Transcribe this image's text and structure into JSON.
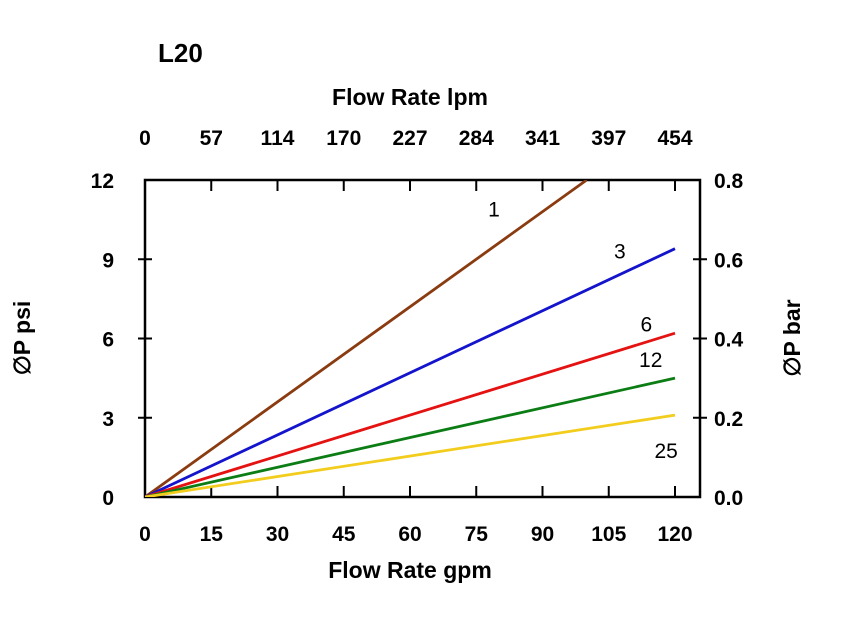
{
  "title": "L20",
  "axes": {
    "top": {
      "label": "Flow Rate lpm",
      "ticks": [
        "0",
        "57",
        "114",
        "170",
        "227",
        "284",
        "341",
        "397",
        "454"
      ]
    },
    "bottom": {
      "label": "Flow Rate gpm",
      "ticks": [
        "0",
        "15",
        "30",
        "45",
        "60",
        "75",
        "90",
        "105",
        "120"
      ]
    },
    "left": {
      "label": "∅P psi",
      "ticks": [
        "0",
        "3",
        "6",
        "9",
        "12"
      ]
    },
    "right": {
      "label": "∅P bar",
      "ticks": [
        "0.0",
        "0.2",
        "0.4",
        "0.6",
        "0.8"
      ]
    }
  },
  "chart_data": {
    "type": "line",
    "title": "L20",
    "xlabel": "Flow Rate gpm",
    "x2label": "Flow Rate lpm",
    "ylabel": "∅P psi",
    "y2label": "∅P bar",
    "xlim": [
      0,
      120
    ],
    "ylim": [
      0,
      12
    ],
    "y2lim": [
      0,
      0.8
    ],
    "x_ticks_gpm": [
      0,
      15,
      30,
      45,
      60,
      75,
      90,
      105,
      120
    ],
    "x2_ticks_lpm": [
      0,
      57,
      114,
      170,
      227,
      284,
      341,
      397,
      454
    ],
    "y_ticks_psi": [
      0,
      3,
      6,
      9,
      12
    ],
    "y2_ticks_bar": [
      0.0,
      0.2,
      0.4,
      0.6,
      0.8
    ],
    "grid": false,
    "legend": "inline-labels",
    "series": [
      {
        "name": "1",
        "color": "#8a3b10",
        "x": [
          0,
          100
        ],
        "y": [
          0,
          12
        ],
        "label_at": [
          79,
          10.9
        ]
      },
      {
        "name": "3",
        "color": "#1414cc",
        "x": [
          0,
          120
        ],
        "y": [
          0,
          9.4
        ],
        "label_at": [
          107.5,
          9.3
        ]
      },
      {
        "name": "6",
        "color": "#e51212",
        "x": [
          0,
          120
        ],
        "y": [
          0,
          6.2
        ],
        "label_at": [
          113.5,
          6.55
        ]
      },
      {
        "name": "12",
        "color": "#0c7d14",
        "x": [
          0,
          120
        ],
        "y": [
          0,
          4.5
        ],
        "label_at": [
          114.5,
          5.2
        ]
      },
      {
        "name": "25",
        "color": "#f2cd1d",
        "x": [
          0,
          120
        ],
        "y": [
          0,
          3.1
        ],
        "label_at": [
          118,
          1.75
        ]
      }
    ]
  }
}
